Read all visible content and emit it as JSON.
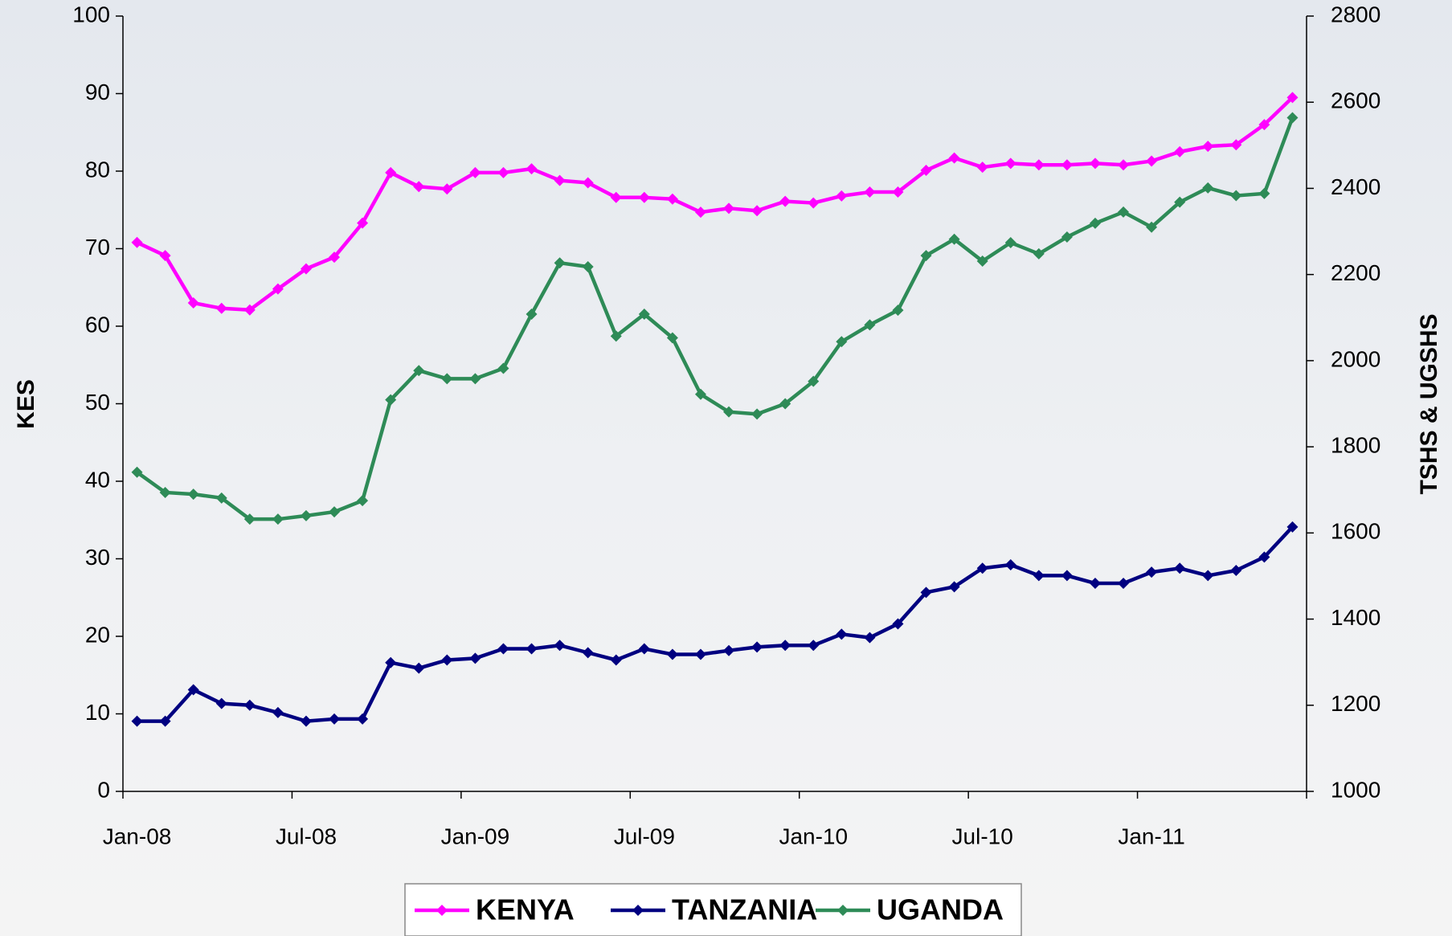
{
  "chart_data": {
    "type": "line",
    "y_label": "KES",
    "y2_label": "TSHS & UGSHS",
    "categories": [
      "Jan-08",
      null,
      null,
      null,
      null,
      null,
      "Jul-08",
      null,
      null,
      null,
      null,
      null,
      "Jan-09",
      null,
      null,
      null,
      null,
      null,
      "Jul-09",
      null,
      null,
      null,
      null,
      null,
      "Jan-10",
      null,
      null,
      null,
      null,
      null,
      "Jul-10",
      null,
      null,
      null,
      null,
      null,
      "Jan-11",
      null,
      null,
      null,
      null,
      null
    ],
    "ylim": [
      0,
      100
    ],
    "yticks": [
      0,
      10,
      20,
      30,
      40,
      50,
      60,
      70,
      80,
      90,
      100
    ],
    "y2lim": [
      1000,
      2800
    ],
    "y2ticks": [
      1000,
      1200,
      1400,
      1600,
      1800,
      2000,
      2200,
      2400,
      2600,
      2800
    ],
    "legend": "bottom",
    "series": [
      {
        "name": "KENYA",
        "color": "#ff00ff",
        "values": [
          70.8,
          69.1,
          63.0,
          62.3,
          62.1,
          64.8,
          67.4,
          68.9,
          73.3,
          79.8,
          78.0,
          77.7,
          79.8,
          79.8,
          80.3,
          78.8,
          78.5,
          76.6,
          76.6,
          76.4,
          74.7,
          75.2,
          74.9,
          76.1,
          75.9,
          76.8,
          77.3,
          77.3,
          80.1,
          81.7,
          80.5,
          81.0,
          80.8,
          80.8,
          81.0,
          80.8,
          81.3,
          82.5,
          83.2,
          83.4,
          86.0,
          89.5
        ]
      },
      {
        "name": "TANZANIA",
        "color": "#000080",
        "axis": "y2",
        "values": [
          1163,
          1163,
          1236,
          1204,
          1200,
          1183,
          1163,
          1168,
          1168,
          1299,
          1286,
          1305,
          1309,
          1331,
          1331,
          1339,
          1322,
          1305,
          1331,
          1318,
          1318,
          1327,
          1335,
          1339,
          1339,
          1365,
          1357,
          1389,
          1462,
          1475,
          1518,
          1526,
          1501,
          1501,
          1483,
          1483,
          1509,
          1518,
          1501,
          1513,
          1544,
          1614
        ]
      },
      {
        "name": "UGANDA",
        "color": "#2e8b57",
        "axis": "y2",
        "values": [
          1741,
          1694,
          1690,
          1681,
          1632,
          1632,
          1640,
          1649,
          1675,
          1909,
          1977,
          1958,
          1958,
          1982,
          2108,
          2227,
          2218,
          2057,
          2108,
          2053,
          1922,
          1881,
          1876,
          1900,
          1952,
          2044,
          2083,
          2117,
          2244,
          2282,
          2231,
          2274,
          2248,
          2287,
          2319,
          2345,
          2310,
          2368,
          2401,
          2383,
          2388,
          2564
        ]
      }
    ]
  }
}
